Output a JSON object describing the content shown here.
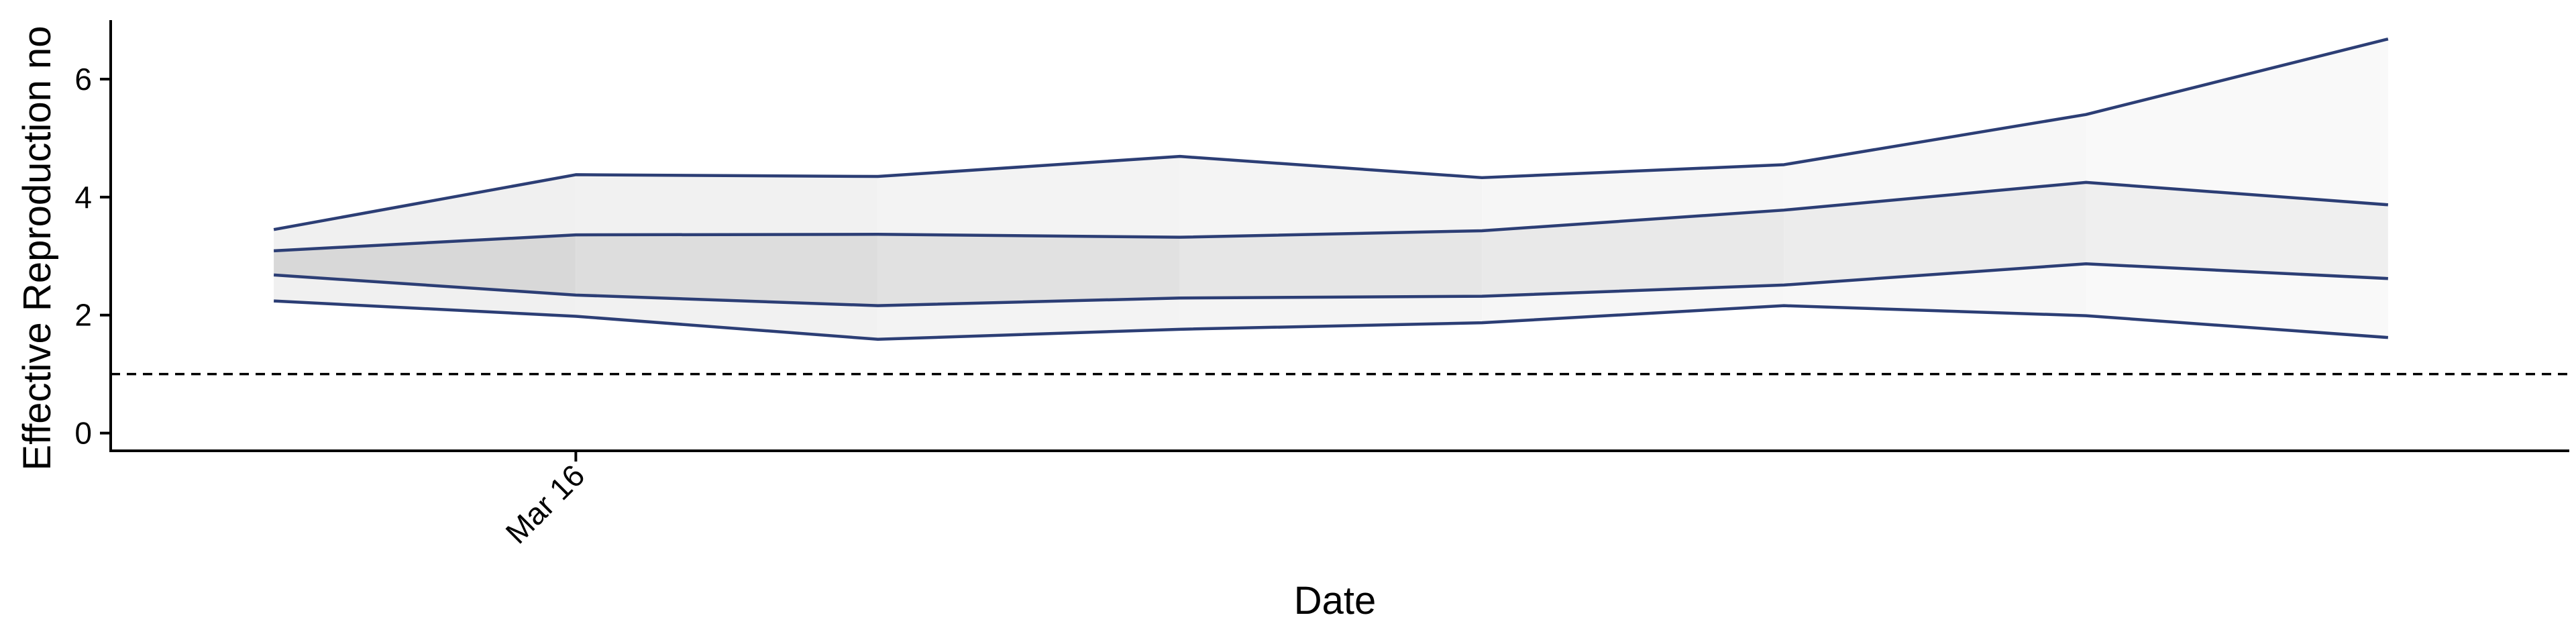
{
  "chart_data": {
    "type": "area",
    "xlabel": "Date",
    "ylabel": "Effective Reproduction no",
    "x_tick_labels": [
      {
        "x": 1,
        "label": "Mar 16"
      }
    ],
    "y_ticks": [
      0,
      2,
      4,
      6
    ],
    "xlim": [
      -0.54,
      7.6
    ],
    "ylim": [
      -0.3,
      7.0
    ],
    "reference_line": {
      "y": 1,
      "style": "dashed"
    },
    "x": [
      0,
      1,
      2,
      3,
      4,
      5,
      6,
      7
    ],
    "median": [
      3.09,
      3.36,
      3.37,
      3.32,
      3.43,
      3.78,
      4.25,
      3.87
    ],
    "inner_band": {
      "lower": [
        2.68,
        2.34,
        2.16,
        2.29,
        2.32,
        2.51,
        2.87,
        2.62
      ],
      "upper": [
        3.09,
        3.36,
        3.37,
        3.32,
        3.43,
        3.78,
        4.25,
        3.87
      ]
    },
    "outer_band": {
      "lower": [
        2.24,
        1.98,
        1.59,
        1.76,
        1.87,
        2.16,
        1.99,
        1.62
      ],
      "upper": [
        3.45,
        4.38,
        4.35,
        4.69,
        4.33,
        4.55,
        5.4,
        6.68
      ]
    },
    "line_color": "#2c3e75",
    "inner_fill": [
      "#d8d8d8",
      "#dddddd",
      "#e1e1e1",
      "#e6e6e6",
      "#e9e9e9",
      "#ececec",
      "#efefef"
    ],
    "outer_fill": [
      "#f0f0f0",
      "#f1f1f1",
      "#f3f3f3",
      "#f4f4f4",
      "#f6f6f6",
      "#f7f7f7",
      "#f9f9f9"
    ],
    "grid": false,
    "legend": "none"
  }
}
